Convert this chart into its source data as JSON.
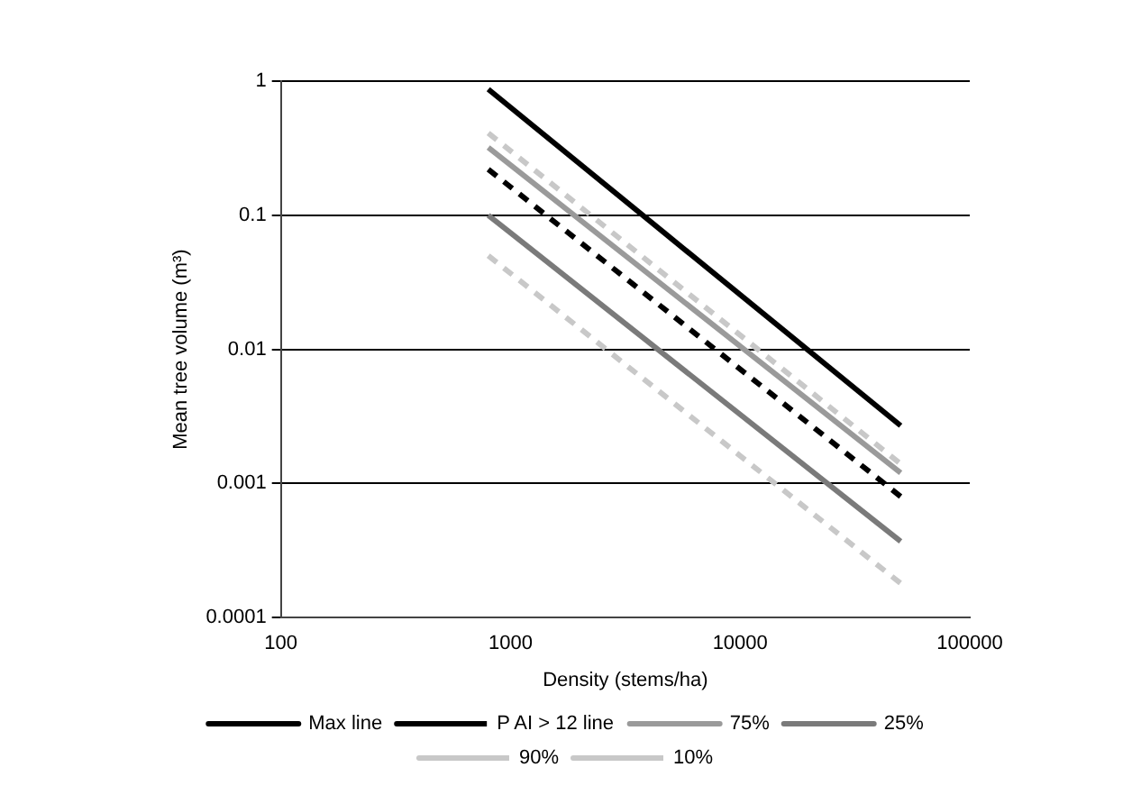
{
  "chart_data": {
    "type": "line",
    "xlabel": "Density (stems/ha)",
    "ylabel": "Mean tree volume (m³)",
    "log": "xy",
    "xlim": [
      100,
      100000
    ],
    "xticks": [
      100,
      1000,
      10000,
      100000
    ],
    "ylim": [
      0.0001,
      1
    ],
    "yticks": [
      0.0001,
      0.001,
      0.01,
      0.1,
      1
    ],
    "grid": "y",
    "legend": "bottom",
    "marker": "none",
    "x": [
      800,
      50000
    ],
    "series": [
      {
        "name": "Max line",
        "color": "#000000",
        "line_style": "solid",
        "values": [
          0.87,
          0.0027
        ]
      },
      {
        "name": "P AI > 12 line",
        "color": "#000000",
        "line_style": "dashed",
        "values": [
          0.22,
          0.0008
        ]
      },
      {
        "name": "75%",
        "color": "#9a9a9a",
        "line_style": "solid",
        "values": [
          0.32,
          0.0012
        ]
      },
      {
        "name": "25%",
        "color": "#7a7a7a",
        "line_style": "solid",
        "values": [
          0.1,
          0.00037
        ]
      },
      {
        "name": "90%",
        "color": "#c8c8c8",
        "line_style": "dashed",
        "values": [
          0.41,
          0.0014
        ]
      },
      {
        "name": "10%",
        "color": "#c8c8c8",
        "line_style": "dashed",
        "values": [
          0.05,
          0.00018
        ]
      }
    ]
  }
}
